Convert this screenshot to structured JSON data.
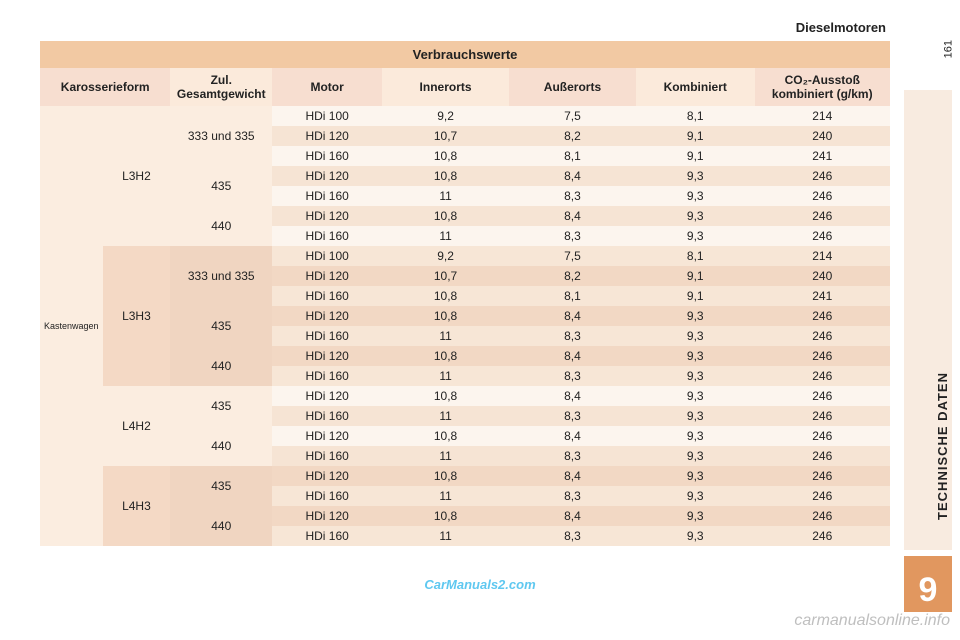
{
  "top_label": "Dieselmotoren",
  "title": "Verbrauchswerte",
  "page_num": "161",
  "side_text": "TECHNISCHE DATEN",
  "chapter": "9",
  "watermark1": "CarManuals2.com",
  "watermark2": "carmanualsonline.info",
  "colors": {
    "title_bg": "#f2c9a3",
    "header_bg": "#f7ded0",
    "zebra_light": "#fcf5ee",
    "zebra_dark": "#f6e4d4",
    "block_bg": "#fbede0",
    "block_bg_alt": "#f4d9c5",
    "side_box": "#e1975f"
  },
  "columns": [
    {
      "label": "Karosserieform",
      "width": "12%"
    },
    {
      "label": "Zul. Gesamtgewicht",
      "width": "12%",
      "small": true
    },
    {
      "label": "Motor",
      "width": "14%"
    },
    {
      "label": "Innerorts",
      "width": "15%"
    },
    {
      "label": "Außerorts",
      "width": "15%"
    },
    {
      "label": "Kombiniert",
      "width": "15%"
    },
    {
      "label": "CO₂-Ausstoß kombiniert (g/km)",
      "width": "17%",
      "small": true
    }
  ],
  "body_label": "Kastenwagen",
  "groups": [
    {
      "variant": "L3H2",
      "tint": "light",
      "weights": [
        {
          "label": "333 und 335",
          "rows": [
            {
              "motor": "HDi 100",
              "inner": "9,2",
              "outer": "7,5",
              "comb": "8,1",
              "co2": "214"
            },
            {
              "motor": "HDi 120",
              "inner": "10,7",
              "outer": "8,2",
              "comb": "9,1",
              "co2": "240"
            },
            {
              "motor": "HDi 160",
              "inner": "10,8",
              "outer": "8,1",
              "comb": "9,1",
              "co2": "241"
            }
          ]
        },
        {
          "label": "435",
          "rows": [
            {
              "motor": "HDi 120",
              "inner": "10,8",
              "outer": "8,4",
              "comb": "9,3",
              "co2": "246"
            },
            {
              "motor": "HDi 160",
              "inner": "11",
              "outer": "8,3",
              "comb": "9,3",
              "co2": "246"
            }
          ]
        },
        {
          "label": "440",
          "rows": [
            {
              "motor": "HDi 120",
              "inner": "10,8",
              "outer": "8,4",
              "comb": "9,3",
              "co2": "246"
            },
            {
              "motor": "HDi 160",
              "inner": "11",
              "outer": "8,3",
              "comb": "9,3",
              "co2": "246"
            }
          ]
        }
      ]
    },
    {
      "variant": "L3H3",
      "tint": "dark",
      "weights": [
        {
          "label": "333 und 335",
          "rows": [
            {
              "motor": "HDi 100",
              "inner": "9,2",
              "outer": "7,5",
              "comb": "8,1",
              "co2": "214"
            },
            {
              "motor": "HDi 120",
              "inner": "10,7",
              "outer": "8,2",
              "comb": "9,1",
              "co2": "240"
            },
            {
              "motor": "HDi 160",
              "inner": "10,8",
              "outer": "8,1",
              "comb": "9,1",
              "co2": "241"
            }
          ]
        },
        {
          "label": "435",
          "rows": [
            {
              "motor": "HDi 120",
              "inner": "10,8",
              "outer": "8,4",
              "comb": "9,3",
              "co2": "246"
            },
            {
              "motor": "HDi 160",
              "inner": "11",
              "outer": "8,3",
              "comb": "9,3",
              "co2": "246"
            }
          ]
        },
        {
          "label": "440",
          "rows": [
            {
              "motor": "HDi 120",
              "inner": "10,8",
              "outer": "8,4",
              "comb": "9,3",
              "co2": "246"
            },
            {
              "motor": "HDi 160",
              "inner": "11",
              "outer": "8,3",
              "comb": "9,3",
              "co2": "246"
            }
          ]
        }
      ]
    },
    {
      "variant": "L4H2",
      "tint": "light",
      "weights": [
        {
          "label": "435",
          "rows": [
            {
              "motor": "HDi 120",
              "inner": "10,8",
              "outer": "8,4",
              "comb": "9,3",
              "co2": "246"
            },
            {
              "motor": "HDi 160",
              "inner": "11",
              "outer": "8,3",
              "comb": "9,3",
              "co2": "246"
            }
          ]
        },
        {
          "label": "440",
          "rows": [
            {
              "motor": "HDi 120",
              "inner": "10,8",
              "outer": "8,4",
              "comb": "9,3",
              "co2": "246"
            },
            {
              "motor": "HDi 160",
              "inner": "11",
              "outer": "8,3",
              "comb": "9,3",
              "co2": "246"
            }
          ]
        }
      ]
    },
    {
      "variant": "L4H3",
      "tint": "dark",
      "weights": [
        {
          "label": "435",
          "rows": [
            {
              "motor": "HDi 120",
              "inner": "10,8",
              "outer": "8,4",
              "comb": "9,3",
              "co2": "246"
            },
            {
              "motor": "HDi 160",
              "inner": "11",
              "outer": "8,3",
              "comb": "9,3",
              "co2": "246"
            }
          ]
        },
        {
          "label": "440",
          "rows": [
            {
              "motor": "HDi 120",
              "inner": "10,8",
              "outer": "8,4",
              "comb": "9,3",
              "co2": "246"
            },
            {
              "motor": "HDi 160",
              "inner": "11",
              "outer": "8,3",
              "comb": "9,3",
              "co2": "246"
            }
          ]
        }
      ]
    }
  ]
}
